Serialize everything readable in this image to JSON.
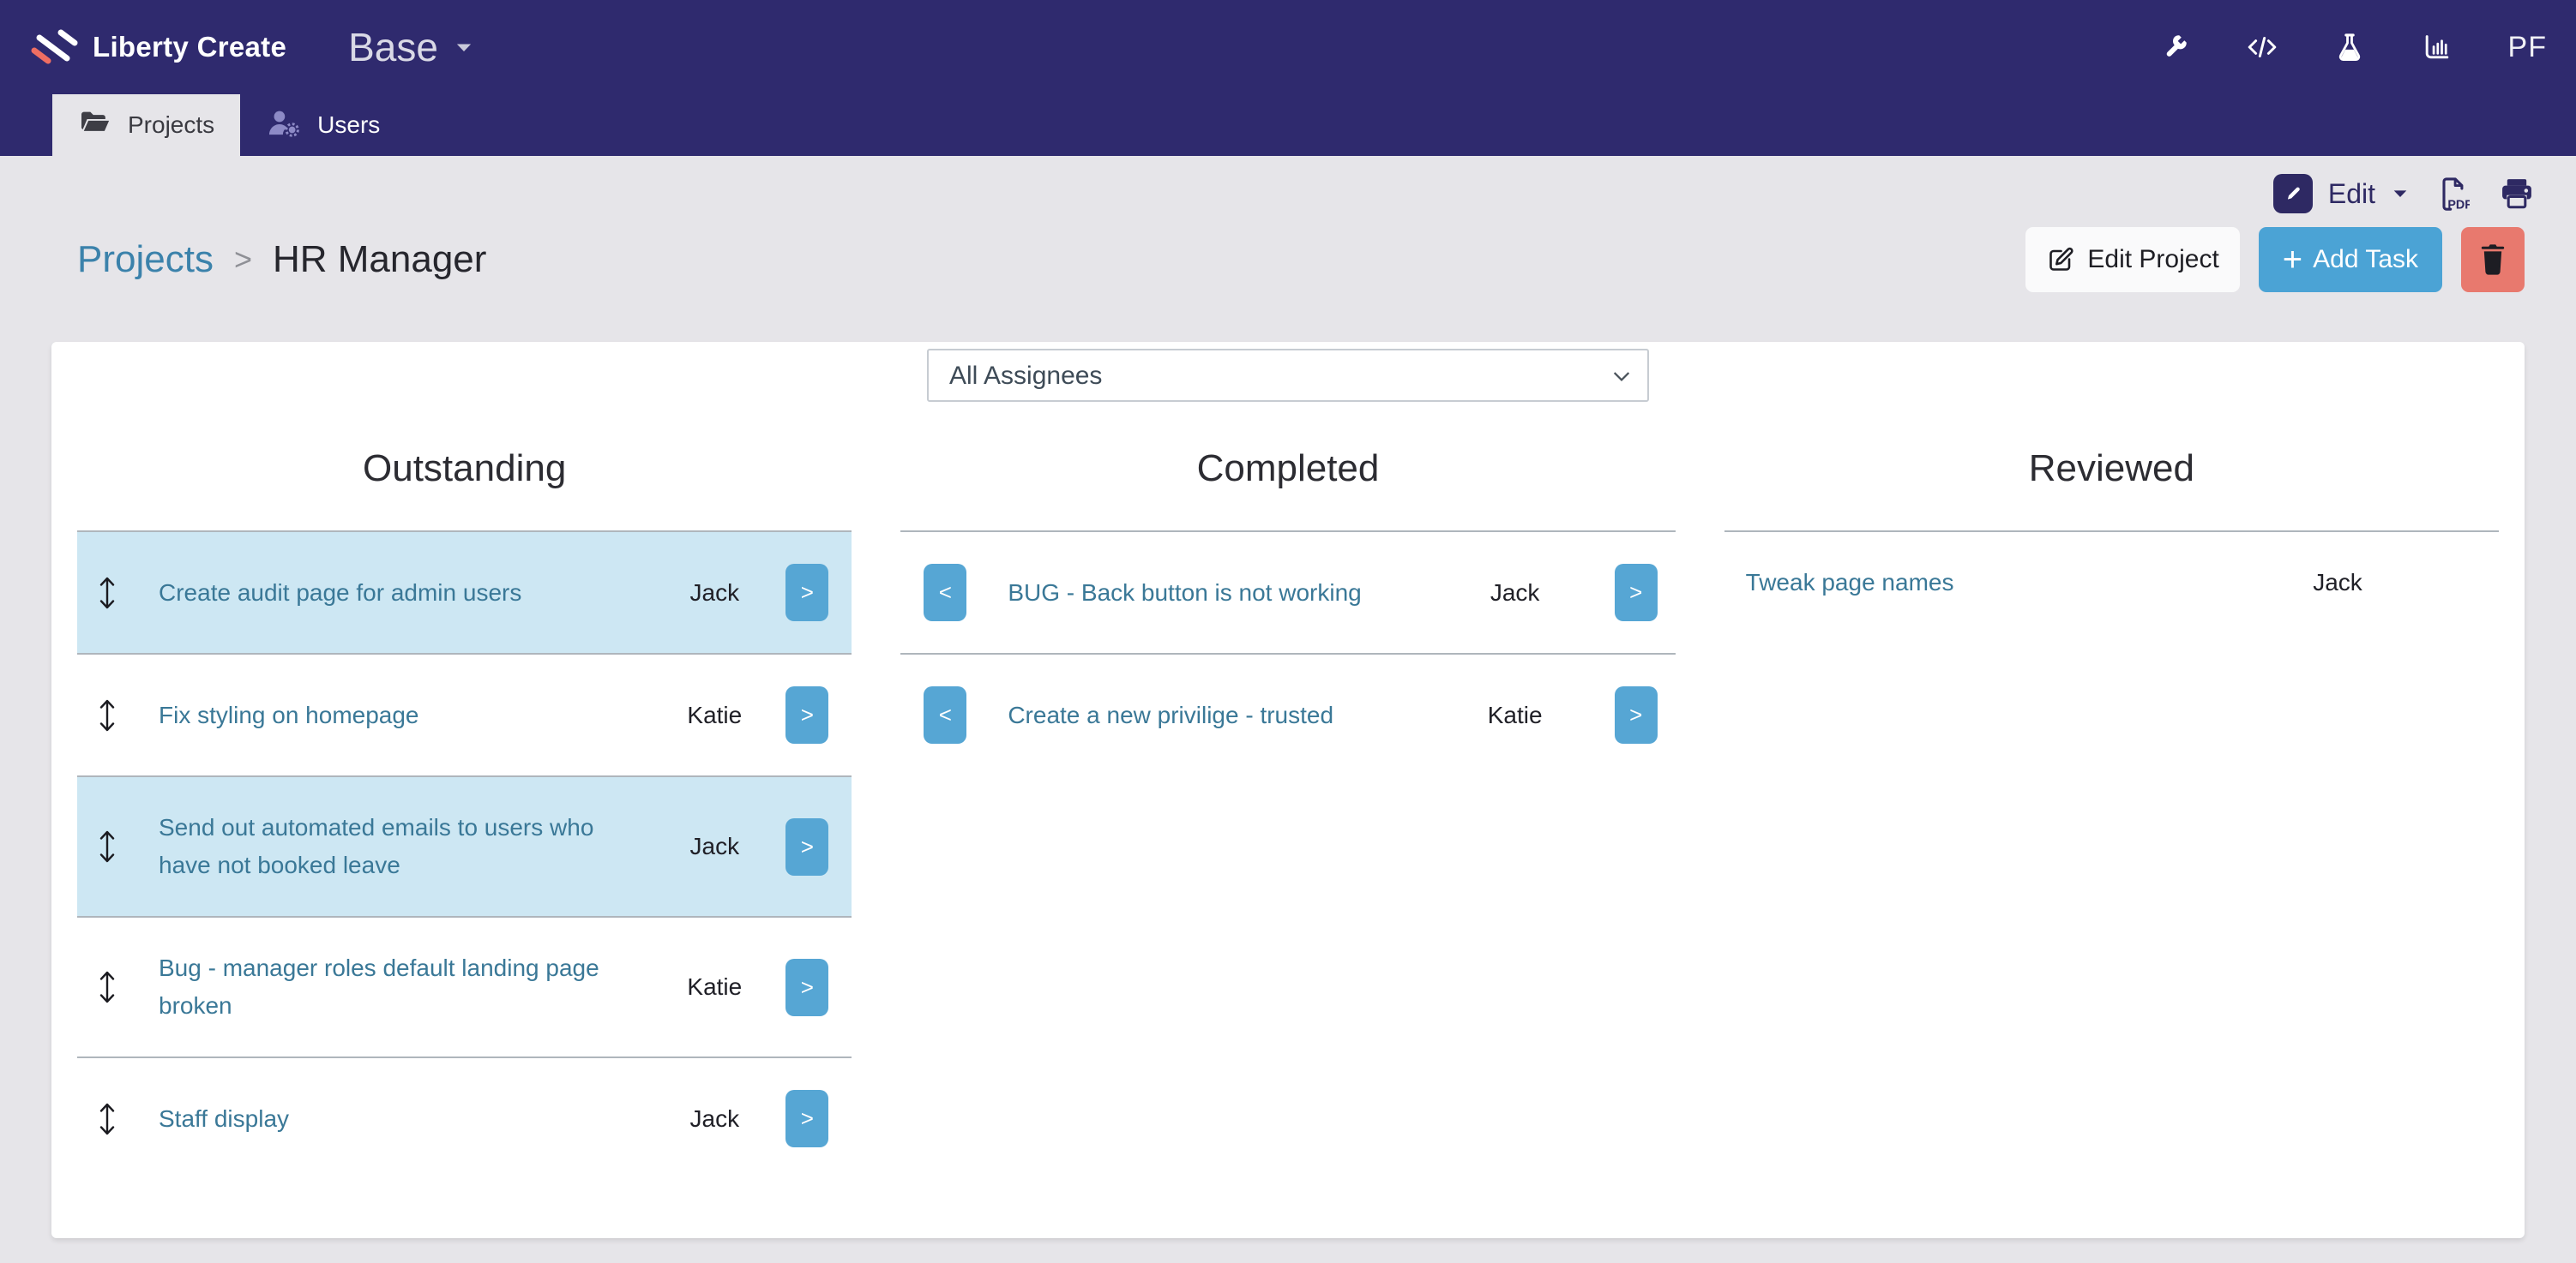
{
  "header": {
    "brand": "Liberty Create",
    "app_menu_label": "Base",
    "user_initials": "PF",
    "icons": [
      "wrench-icon",
      "code-icon",
      "flask-icon",
      "bar-chart-icon"
    ]
  },
  "tabs": [
    {
      "label": "Projects",
      "icon": "folder-open-icon",
      "active": true
    },
    {
      "label": "Users",
      "icon": "user-gear-icon",
      "active": false
    }
  ],
  "view_toolbar": {
    "edit_label": "Edit",
    "icons": [
      "pencil-square-icon",
      "caret-down-icon",
      "pdf-file-icon",
      "printer-icon"
    ]
  },
  "breadcrumb": {
    "parent": "Projects",
    "separator": ">",
    "current": "HR Manager"
  },
  "page_actions": {
    "edit_project_label": "Edit Project",
    "add_task_plus": "+",
    "add_task_label": "Add Task",
    "delete_icon": "trash-icon"
  },
  "filter": {
    "selected": "All Assignees"
  },
  "board": {
    "move_left_glyph": "<",
    "move_right_glyph": ">",
    "columns": [
      {
        "title": "Outstanding",
        "type": "outstanding",
        "tasks": [
          {
            "title": "Create audit page for admin users",
            "assignee": "Jack",
            "highlighted": true
          },
          {
            "title": "Fix styling on homepage",
            "assignee": "Katie",
            "highlighted": false
          },
          {
            "title": "Send out automated emails to users who have not booked leave",
            "assignee": "Jack",
            "highlighted": true
          },
          {
            "title": "Bug - manager roles default landing page broken",
            "assignee": "Katie",
            "highlighted": false
          },
          {
            "title": "Staff display",
            "assignee": "Jack",
            "highlighted": false
          }
        ]
      },
      {
        "title": "Completed",
        "type": "completed",
        "tasks": [
          {
            "title": "BUG - Back button is not working",
            "assignee": "Jack",
            "highlighted": false
          },
          {
            "title": "Create a new privilige - trusted",
            "assignee": "Katie",
            "highlighted": false
          }
        ]
      },
      {
        "title": "Reviewed",
        "type": "reviewed",
        "tasks": [
          {
            "title": "Tweak page names",
            "assignee": "Jack",
            "highlighted": false
          }
        ]
      }
    ]
  },
  "colors": {
    "header_purple": "#2f2a6e",
    "toolbar_purple": "#2e2963",
    "accent_blue": "#4ba3d5",
    "row_button_blue": "#56a6d4",
    "danger_red": "#e8796e",
    "highlight_blue": "#cde7f3",
    "link_teal": "#3a7897",
    "breadcrumb_link": "#3b82ab",
    "logo_coral": "#ef6e62"
  }
}
